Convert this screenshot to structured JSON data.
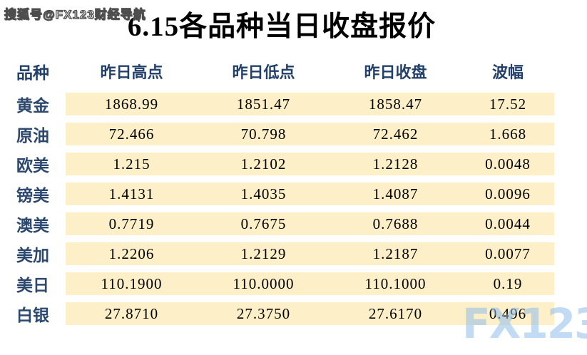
{
  "watermarks": {
    "top_left": "搜狐号@FX123财经导航",
    "bottom_right": "FX123"
  },
  "title": "6.15各品种当日收盘报价",
  "table": {
    "columns": [
      "品种",
      "昨日高点",
      "昨日低点",
      "昨日收盘",
      "波幅"
    ],
    "rows": [
      {
        "name": "黄金",
        "high": "1868.99",
        "low": "1851.47",
        "close": "1858.47",
        "range": "17.52"
      },
      {
        "name": "原油",
        "high": "72.466",
        "low": "70.798",
        "close": "72.462",
        "range": "1.668"
      },
      {
        "name": "欧美",
        "high": "1.215",
        "low": "1.2102",
        "close": "1.2128",
        "range": "0.0048"
      },
      {
        "name": "镑美",
        "high": "1.4131",
        "low": "1.4035",
        "close": "1.4087",
        "range": "0.0096"
      },
      {
        "name": "澳美",
        "high": "0.7719",
        "low": "0.7675",
        "close": "0.7688",
        "range": "0.0044"
      },
      {
        "name": "美加",
        "high": "1.2206",
        "low": "1.2129",
        "close": "1.2187",
        "range": "0.0077"
      },
      {
        "name": "美日",
        "high": "110.1900",
        "low": "110.0000",
        "close": "110.1000",
        "range": "0.19"
      },
      {
        "name": "白银",
        "high": "27.8710",
        "low": "27.3750",
        "close": "27.6170",
        "range": "0.496"
      }
    ]
  },
  "colors": {
    "row_band_bg": "#fdefc7",
    "label_navy": "#2c486e",
    "watermark_blue": "#90beeb",
    "title_black": "#000000"
  },
  "chart_data": {
    "type": "table",
    "title": "6.15各品种当日收盘报价",
    "columns": [
      "品种",
      "昨日高点",
      "昨日低点",
      "昨日收盘",
      "波幅"
    ],
    "rows": [
      [
        "黄金",
        1868.99,
        1851.47,
        1858.47,
        17.52
      ],
      [
        "原油",
        72.466,
        70.798,
        72.462,
        1.668
      ],
      [
        "欧美",
        1.215,
        1.2102,
        1.2128,
        0.0048
      ],
      [
        "镑美",
        1.4131,
        1.4035,
        1.4087,
        0.0096
      ],
      [
        "澳美",
        0.7719,
        0.7675,
        0.7688,
        0.0044
      ],
      [
        "美加",
        1.2206,
        1.2129,
        1.2187,
        0.0077
      ],
      [
        "美日",
        110.19,
        110.0,
        110.1,
        0.19
      ],
      [
        "白银",
        27.871,
        27.375,
        27.617,
        0.496
      ]
    ]
  }
}
